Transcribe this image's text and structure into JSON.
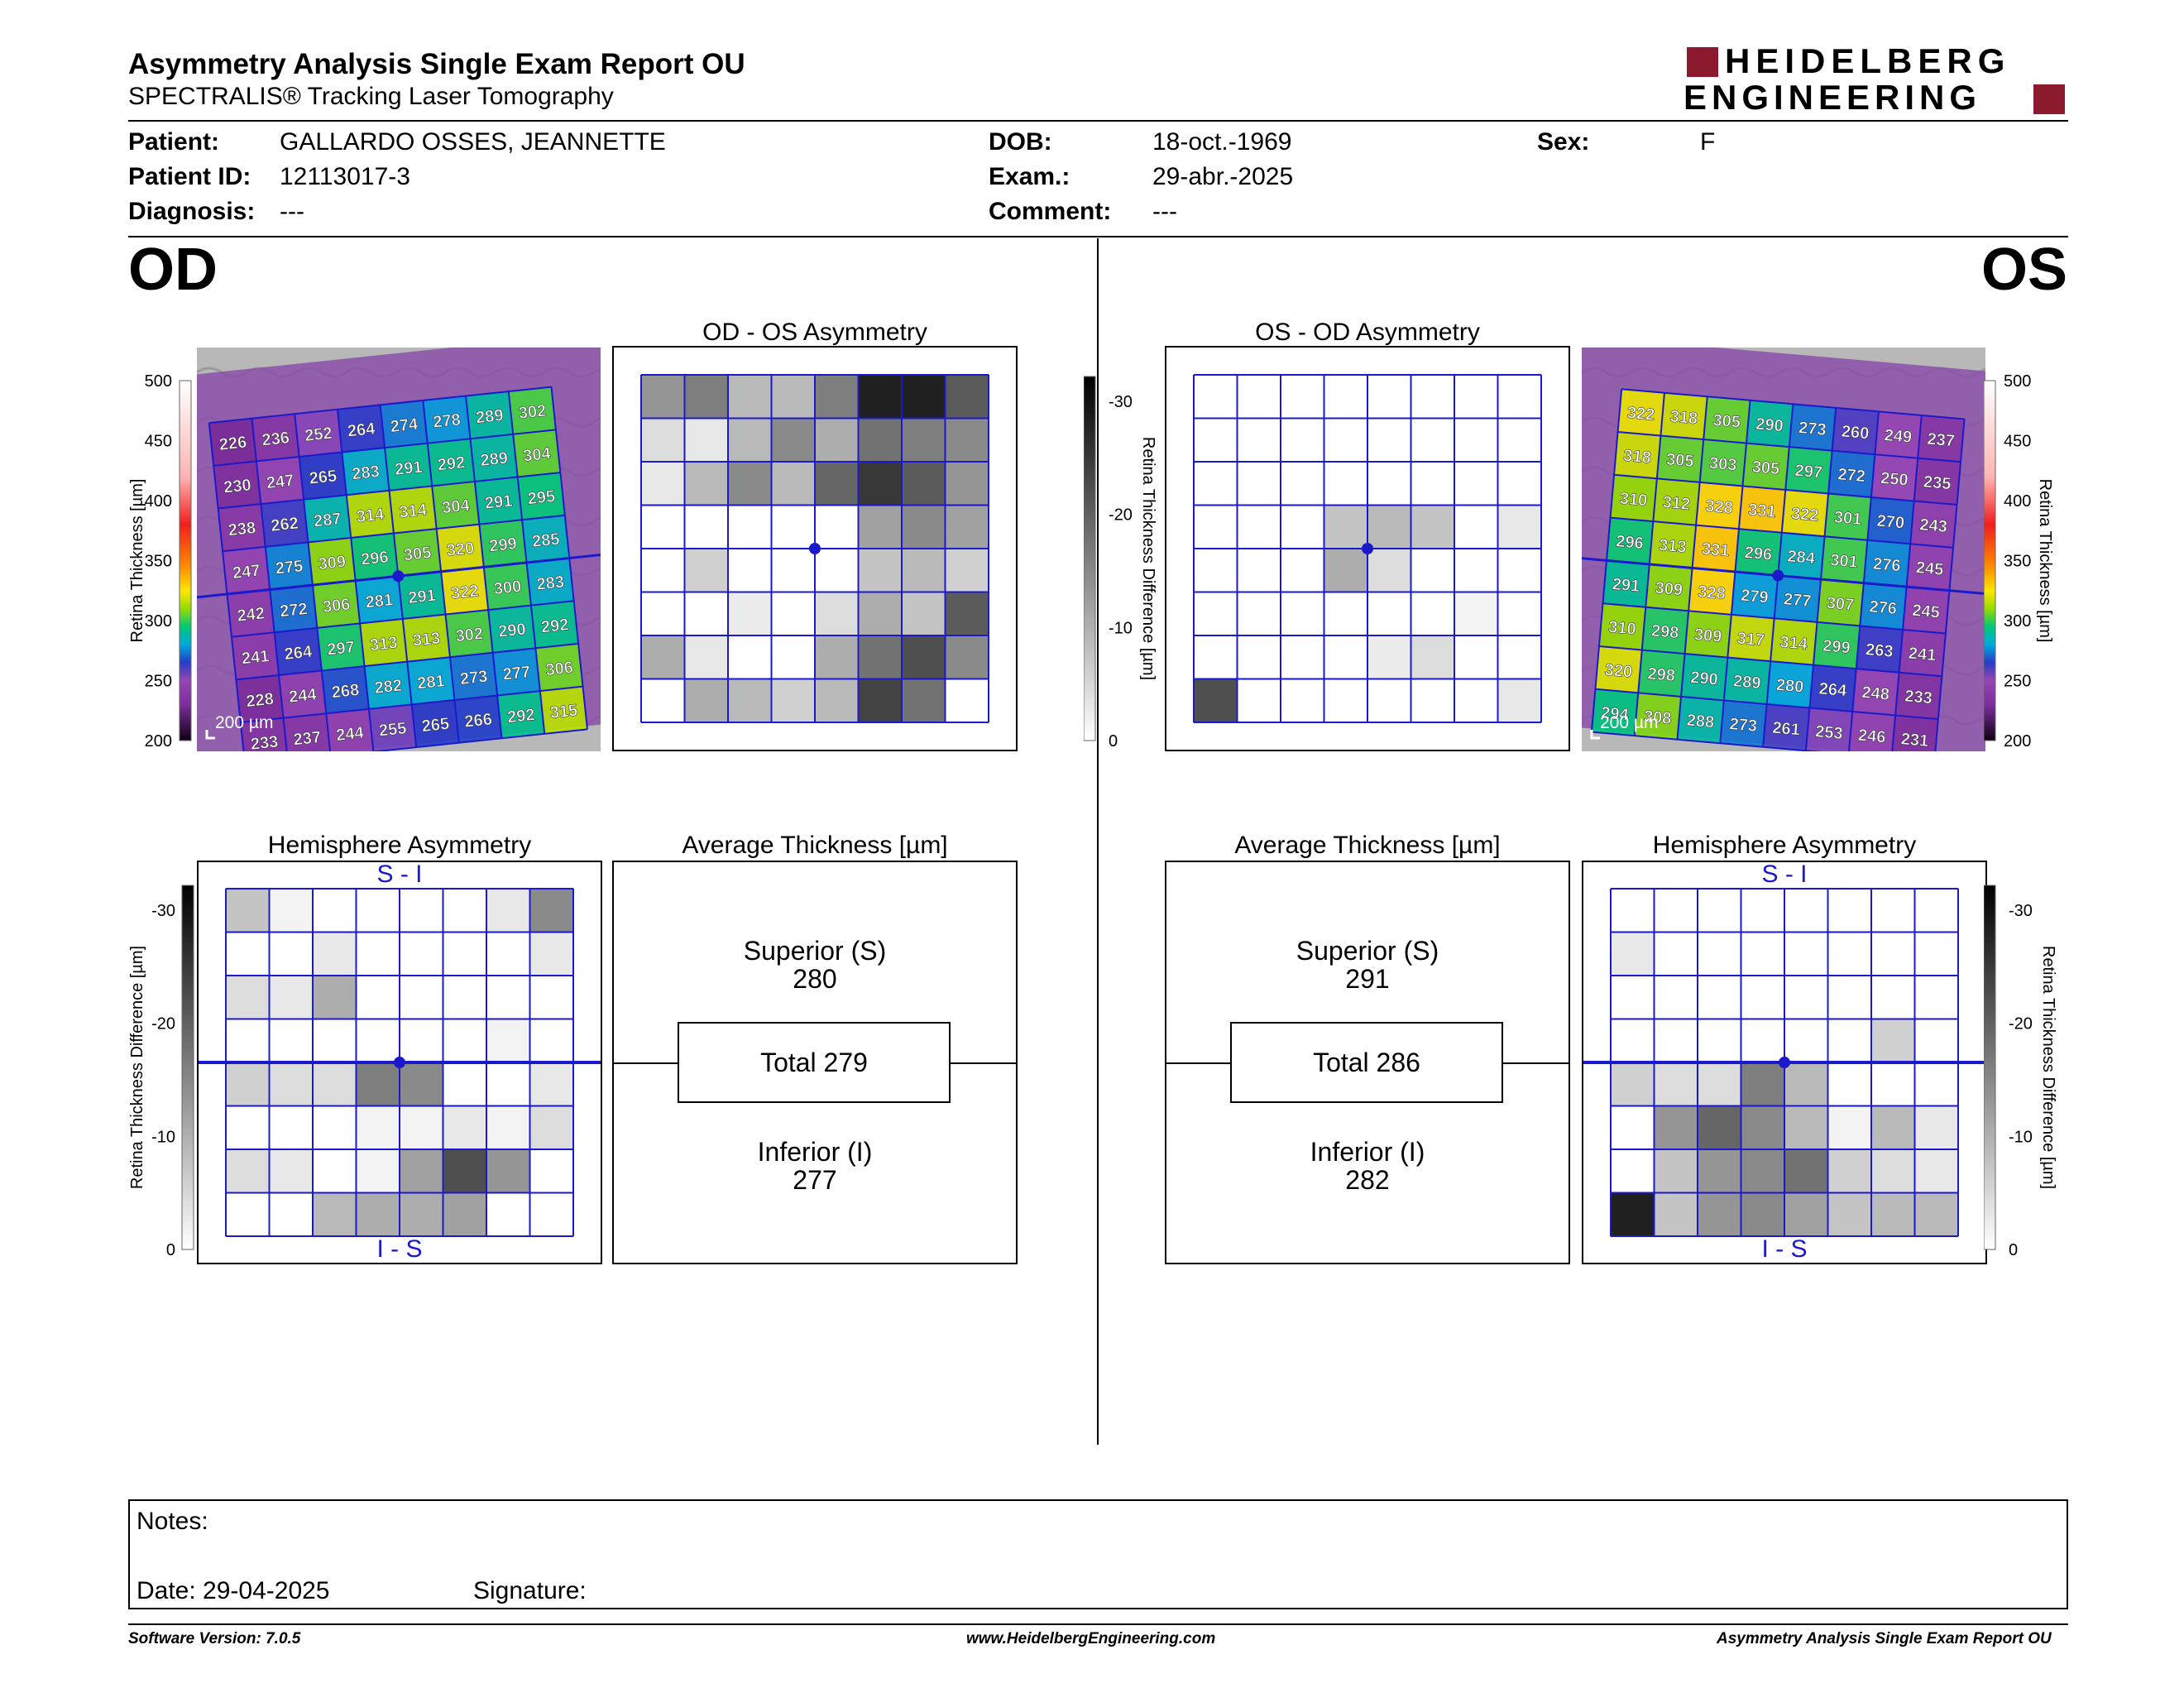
{
  "header": {
    "title": "Asymmetry Analysis Single Exam Report OU",
    "subtitle": "SPECTRALIS® Tracking Laser Tomography",
    "logo_line1": "HEIDELBERG",
    "logo_line2": "ENGINEERING"
  },
  "patient": {
    "patient_label": "Patient:",
    "patient_value": "GALLARDO OSSES, JEANNETTE",
    "id_label": "Patient ID:",
    "id_value": "12113017-3",
    "diagnosis_label": "Diagnosis:",
    "diagnosis_value": "---",
    "dob_label": "DOB:",
    "dob_value": "18-oct.-1969",
    "exam_label": "Exam.:",
    "exam_value": "29-abr.-2025",
    "comment_label": "Comment:",
    "comment_value": "---",
    "sex_label": "Sex:",
    "sex_value": "F"
  },
  "od": {
    "label": "OD",
    "map_scale": "200 µm",
    "grid": [
      [
        226,
        236,
        252,
        264,
        274,
        278,
        289,
        302
      ],
      [
        230,
        247,
        265,
        283,
        291,
        292,
        289,
        304
      ],
      [
        238,
        262,
        287,
        314,
        314,
        304,
        291,
        295
      ],
      [
        247,
        275,
        309,
        296,
        305,
        320,
        299,
        285
      ],
      [
        242,
        272,
        306,
        281,
        291,
        322,
        300,
        283
      ],
      [
        241,
        264,
        297,
        313,
        313,
        302,
        290,
        292
      ],
      [
        228,
        244,
        268,
        282,
        281,
        273,
        277,
        306
      ],
      [
        233,
        237,
        244,
        255,
        265,
        266,
        292,
        315
      ]
    ],
    "asym_title": "OD - OS Asymmetry",
    "asym_shades": [
      [
        0.45,
        0.55,
        0.3,
        0.3,
        0.55,
        0.95,
        0.95,
        0.7
      ],
      [
        0.15,
        0.1,
        0.3,
        0.5,
        0.35,
        0.6,
        0.55,
        0.5
      ],
      [
        0.1,
        0.3,
        0.5,
        0.3,
        0.65,
        0.85,
        0.7,
        0.45
      ],
      [
        0,
        0,
        0,
        0,
        0,
        0.4,
        0.5,
        0.4
      ],
      [
        0,
        0.2,
        0,
        0,
        0,
        0.25,
        0.3,
        0.2
      ],
      [
        0,
        0,
        0.08,
        0,
        0.15,
        0.35,
        0.25,
        0.7
      ],
      [
        0.35,
        0.1,
        0,
        0,
        0.35,
        0.6,
        0.75,
        0.5
      ],
      [
        0,
        0.35,
        0.3,
        0.2,
        0.3,
        0.8,
        0.6,
        0
      ]
    ],
    "hemi_title": "Hemisphere Asymmetry",
    "hemi_top": "S - I",
    "hemi_bottom": "I - S",
    "hemi_shades": [
      [
        0.25,
        0.05,
        0,
        0,
        0,
        0,
        0.1,
        0.5
      ],
      [
        0,
        0,
        0.1,
        0,
        0,
        0,
        0,
        0.1
      ],
      [
        0.15,
        0.1,
        0.35,
        0,
        0,
        0,
        0,
        0
      ],
      [
        0,
        0,
        0,
        0,
        0,
        0,
        0.05,
        0
      ],
      [
        0.2,
        0.15,
        0.15,
        0.55,
        0.5,
        0,
        0,
        0.1
      ],
      [
        0,
        0,
        0,
        0.05,
        0.05,
        0.1,
        0.05,
        0.15
      ],
      [
        0.15,
        0.1,
        0,
        0.05,
        0.4,
        0.75,
        0.45,
        0
      ],
      [
        0,
        0,
        0.3,
        0.35,
        0.35,
        0.4,
        0,
        0
      ]
    ],
    "avg_title": "Average Thickness [µm]",
    "superior_label": "Superior (S)",
    "superior_value": "280",
    "total_label": "Total 279",
    "inferior_label": "Inferior (I)",
    "inferior_value": "277"
  },
  "os": {
    "label": "OS",
    "map_scale": "200 µm",
    "grid": [
      [
        322,
        318,
        305,
        290,
        273,
        260,
        249,
        237
      ],
      [
        318,
        305,
        303,
        305,
        297,
        272,
        250,
        235
      ],
      [
        310,
        312,
        328,
        331,
        322,
        301,
        270,
        243
      ],
      [
        296,
        313,
        331,
        296,
        284,
        301,
        276,
        245
      ],
      [
        291,
        309,
        328,
        279,
        277,
        307,
        276,
        245
      ],
      [
        310,
        298,
        309,
        317,
        314,
        299,
        263,
        241
      ],
      [
        320,
        298,
        290,
        289,
        280,
        264,
        248,
        233
      ],
      [
        294,
        308,
        288,
        273,
        261,
        253,
        246,
        231
      ]
    ],
    "asym_title": "OS - OD Asymmetry",
    "asym_shades": [
      [
        0,
        0,
        0,
        0,
        0,
        0,
        0,
        0
      ],
      [
        0,
        0,
        0,
        0,
        0,
        0,
        0,
        0
      ],
      [
        0,
        0,
        0,
        0,
        0,
        0,
        0,
        0
      ],
      [
        0,
        0,
        0,
        0.25,
        0.3,
        0.25,
        0,
        0.1
      ],
      [
        0,
        0,
        0,
        0.35,
        0.15,
        0,
        0,
        0
      ],
      [
        0,
        0,
        0,
        0,
        0,
        0,
        0.05,
        0
      ],
      [
        0,
        0,
        0,
        0,
        0.08,
        0.15,
        0,
        0
      ],
      [
        0.75,
        0,
        0,
        0,
        0,
        0,
        0,
        0.1
      ]
    ],
    "hemi_title": "Hemisphere Asymmetry",
    "hemi_top": "S - I",
    "hemi_bottom": "I - S",
    "hemi_shades": [
      [
        0,
        0,
        0,
        0,
        0,
        0,
        0,
        0
      ],
      [
        0.1,
        0,
        0,
        0,
        0,
        0,
        0,
        0
      ],
      [
        0,
        0,
        0,
        0,
        0,
        0,
        0,
        0
      ],
      [
        0,
        0,
        0,
        0,
        0,
        0,
        0.2,
        0
      ],
      [
        0.2,
        0.15,
        0.15,
        0.55,
        0.3,
        0,
        0,
        0
      ],
      [
        0,
        0.45,
        0.65,
        0.5,
        0.3,
        0.05,
        0.3,
        0.1
      ],
      [
        0,
        0.25,
        0.45,
        0.5,
        0.6,
        0.2,
        0.15,
        0.1
      ],
      [
        0.95,
        0.25,
        0.45,
        0.5,
        0.4,
        0.25,
        0.3,
        0.3
      ]
    ],
    "avg_title": "Average Thickness [µm]",
    "superior_label": "Superior (S)",
    "superior_value": "291",
    "total_label": "Total 286",
    "inferior_label": "Inferior (I)",
    "inferior_value": "282"
  },
  "scales": {
    "thickness_title": "Retina Thickness [µm]",
    "thickness_ticks": [
      "500",
      "450",
      "400",
      "350",
      "300",
      "250",
      "200"
    ],
    "diff_title": "Retina Thickness Difference [µm]",
    "diff_ticks": [
      "-30",
      "-20",
      "-10",
      "0"
    ]
  },
  "notes": {
    "notes_label": "Notes:",
    "date_label": "Date: 29-04-2025",
    "signature_label": "Signature:"
  },
  "footer": {
    "version": "Software Version: 7.0.5",
    "website": "www.HeidelbergEngineering.com",
    "report": "Asymmetry Analysis Single Exam Report OU"
  },
  "colors": {
    "grid_blue": "#1a1acc",
    "logo_red": "#8b1a2e"
  }
}
